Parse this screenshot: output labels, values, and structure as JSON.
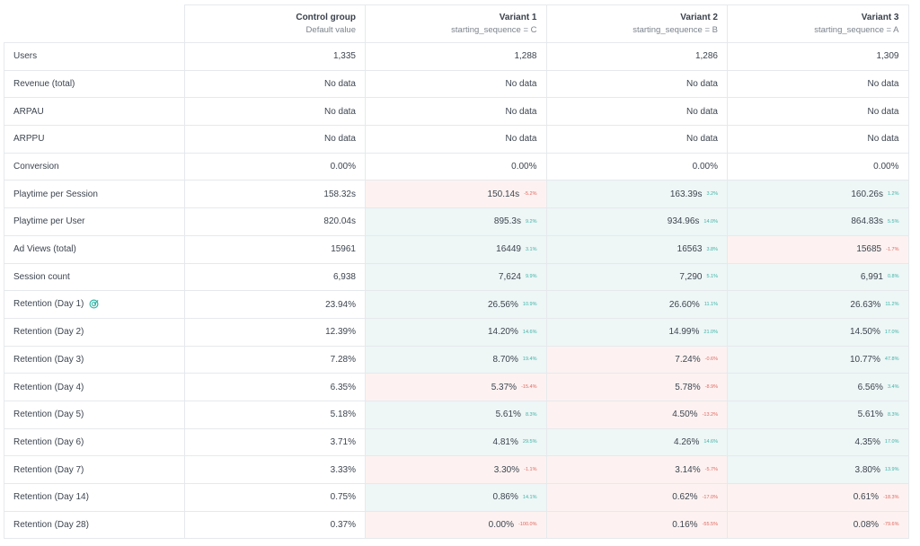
{
  "columns": [
    {
      "title": "Control group",
      "subtitle": "Default value"
    },
    {
      "title": "Variant 1",
      "subtitle": "starting_sequence = C"
    },
    {
      "title": "Variant 2",
      "subtitle": "starting_sequence = B"
    },
    {
      "title": "Variant 3",
      "subtitle": "starting_sequence = A"
    }
  ],
  "colors": {
    "positive_bg": "#eef6f6",
    "negative_bg": "#fdf2f1",
    "positive_text": "#3cb3a5",
    "negative_text": "#e0665e"
  },
  "rows": [
    {
      "metric": "Users",
      "values": [
        {
          "value": "1,335"
        },
        {
          "value": "1,288"
        },
        {
          "value": "1,286"
        },
        {
          "value": "1,309"
        }
      ]
    },
    {
      "metric": "Revenue (total)",
      "values": [
        {
          "value": "No data"
        },
        {
          "value": "No data"
        },
        {
          "value": "No data"
        },
        {
          "value": "No data"
        }
      ]
    },
    {
      "metric": "ARPAU",
      "values": [
        {
          "value": "No data"
        },
        {
          "value": "No data"
        },
        {
          "value": "No data"
        },
        {
          "value": "No data"
        }
      ]
    },
    {
      "metric": "ARPPU",
      "values": [
        {
          "value": "No data"
        },
        {
          "value": "No data"
        },
        {
          "value": "No data"
        },
        {
          "value": "No data"
        }
      ]
    },
    {
      "metric": "Conversion",
      "values": [
        {
          "value": "0.00%"
        },
        {
          "value": "0.00%"
        },
        {
          "value": "0.00%"
        },
        {
          "value": "0.00%"
        }
      ]
    },
    {
      "metric": "Playtime per Session",
      "values": [
        {
          "value": "158.32s"
        },
        {
          "value": "150.14s",
          "delta": "-5.2%",
          "dir": "down"
        },
        {
          "value": "163.39s",
          "delta": "3.2%",
          "dir": "up"
        },
        {
          "value": "160.26s",
          "delta": "1.2%",
          "dir": "up"
        }
      ]
    },
    {
      "metric": "Playtime per User",
      "values": [
        {
          "value": "820.04s"
        },
        {
          "value": "895.3s",
          "delta": "9.2%",
          "dir": "up"
        },
        {
          "value": "934.96s",
          "delta": "14.0%",
          "dir": "up"
        },
        {
          "value": "864.83s",
          "delta": "5.5%",
          "dir": "up"
        }
      ]
    },
    {
      "metric": "Ad Views (total)",
      "values": [
        {
          "value": "15961"
        },
        {
          "value": "16449",
          "delta": "3.1%",
          "dir": "up"
        },
        {
          "value": "16563",
          "delta": "3.8%",
          "dir": "up"
        },
        {
          "value": "15685",
          "delta": "-1.7%",
          "dir": "down"
        }
      ]
    },
    {
      "metric": "Session count",
      "values": [
        {
          "value": "6,938"
        },
        {
          "value": "7,624",
          "delta": "9.9%",
          "dir": "up"
        },
        {
          "value": "7,290",
          "delta": "5.1%",
          "dir": "up"
        },
        {
          "value": "6,991",
          "delta": "0.8%",
          "dir": "up"
        }
      ]
    },
    {
      "metric": "Retention (Day 1)",
      "icon": "target-check-icon",
      "values": [
        {
          "value": "23.94%"
        },
        {
          "value": "26.56%",
          "delta": "10.9%",
          "dir": "up"
        },
        {
          "value": "26.60%",
          "delta": "11.1%",
          "dir": "up"
        },
        {
          "value": "26.63%",
          "delta": "11.2%",
          "dir": "up"
        }
      ]
    },
    {
      "metric": "Retention (Day 2)",
      "values": [
        {
          "value": "12.39%"
        },
        {
          "value": "14.20%",
          "delta": "14.6%",
          "dir": "up"
        },
        {
          "value": "14.99%",
          "delta": "21.0%",
          "dir": "up"
        },
        {
          "value": "14.50%",
          "delta": "17.0%",
          "dir": "up"
        }
      ]
    },
    {
      "metric": "Retention (Day 3)",
      "values": [
        {
          "value": "7.28%"
        },
        {
          "value": "8.70%",
          "delta": "19.4%",
          "dir": "up"
        },
        {
          "value": "7.24%",
          "delta": "-0.6%",
          "dir": "down"
        },
        {
          "value": "10.77%",
          "delta": "47.8%",
          "dir": "up"
        }
      ]
    },
    {
      "metric": "Retention (Day 4)",
      "values": [
        {
          "value": "6.35%"
        },
        {
          "value": "5.37%",
          "delta": "-15.4%",
          "dir": "down"
        },
        {
          "value": "5.78%",
          "delta": "-8.9%",
          "dir": "down"
        },
        {
          "value": "6.56%",
          "delta": "3.4%",
          "dir": "up"
        }
      ]
    },
    {
      "metric": "Retention (Day 5)",
      "values": [
        {
          "value": "5.18%"
        },
        {
          "value": "5.61%",
          "delta": "8.3%",
          "dir": "up"
        },
        {
          "value": "4.50%",
          "delta": "-13.2%",
          "dir": "down"
        },
        {
          "value": "5.61%",
          "delta": "8.3%",
          "dir": "up"
        }
      ]
    },
    {
      "metric": "Retention (Day 6)",
      "values": [
        {
          "value": "3.71%"
        },
        {
          "value": "4.81%",
          "delta": "29.5%",
          "dir": "up"
        },
        {
          "value": "4.26%",
          "delta": "14.6%",
          "dir": "up"
        },
        {
          "value": "4.35%",
          "delta": "17.0%",
          "dir": "up"
        }
      ]
    },
    {
      "metric": "Retention (Day 7)",
      "values": [
        {
          "value": "3.33%"
        },
        {
          "value": "3.30%",
          "delta": "-1.1%",
          "dir": "down"
        },
        {
          "value": "3.14%",
          "delta": "-5.7%",
          "dir": "down"
        },
        {
          "value": "3.80%",
          "delta": "13.9%",
          "dir": "up"
        }
      ]
    },
    {
      "metric": "Retention (Day 14)",
      "values": [
        {
          "value": "0.75%"
        },
        {
          "value": "0.86%",
          "delta": "14.1%",
          "dir": "up"
        },
        {
          "value": "0.62%",
          "delta": "-17.0%",
          "dir": "down"
        },
        {
          "value": "0.61%",
          "delta": "-18.3%",
          "dir": "down"
        }
      ]
    },
    {
      "metric": "Retention (Day 28)",
      "values": [
        {
          "value": "0.37%"
        },
        {
          "value": "0.00%",
          "delta": "-100.0%",
          "dir": "down"
        },
        {
          "value": "0.16%",
          "delta": "-55.5%",
          "dir": "down"
        },
        {
          "value": "0.08%",
          "delta": "-79.6%",
          "dir": "down"
        }
      ]
    }
  ]
}
